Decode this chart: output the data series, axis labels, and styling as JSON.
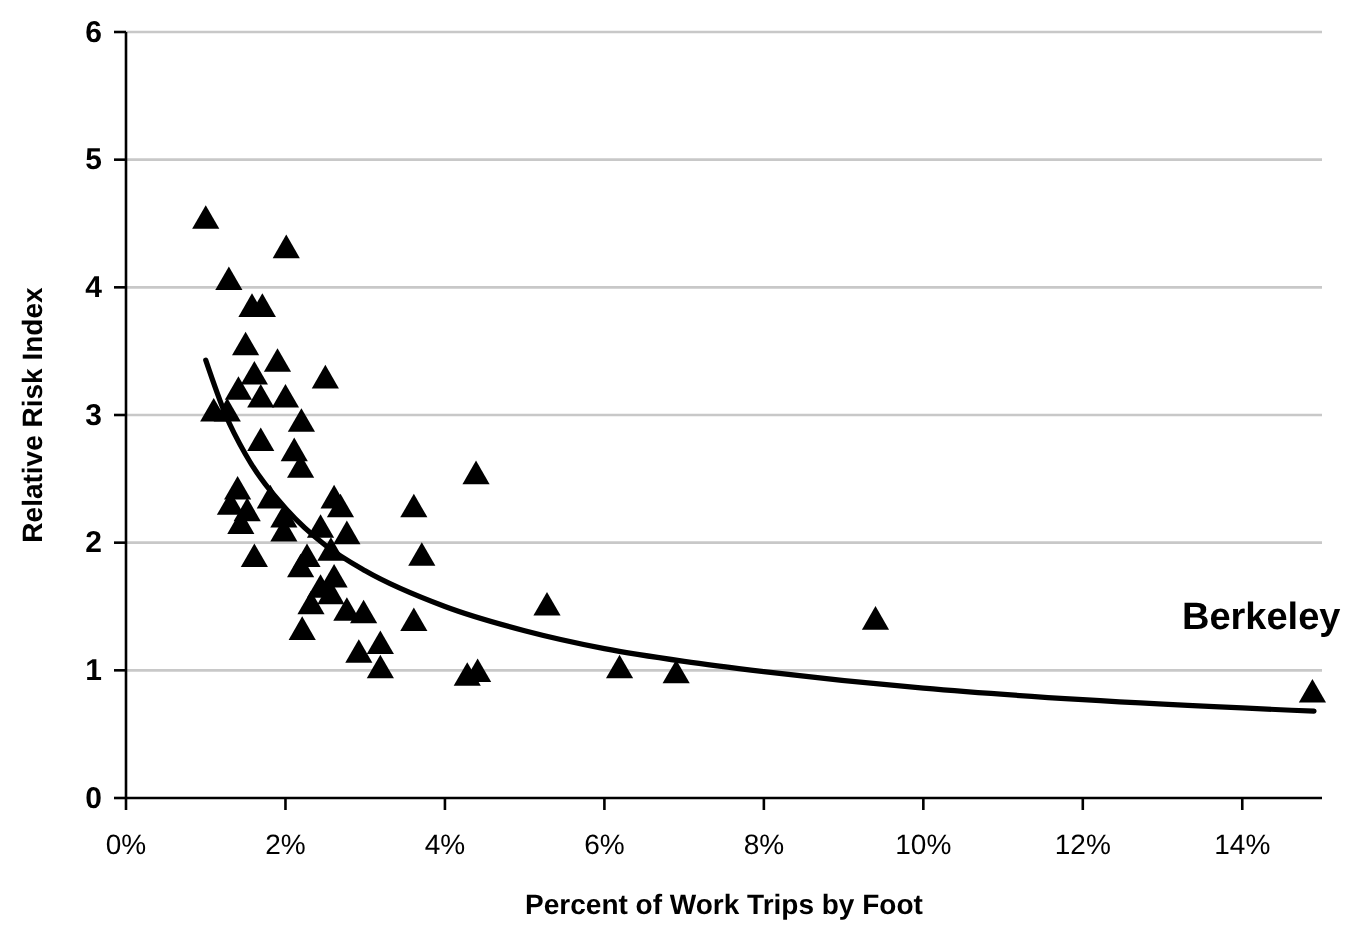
{
  "chart_data": {
    "type": "scatter",
    "xlabel": "Percent of Work Trips by Foot",
    "ylabel": "Relative Risk Index",
    "xlim": [
      0,
      15
    ],
    "xticks": [
      {
        "value": 0,
        "label": "0%"
      },
      {
        "value": 2,
        "label": "2%"
      },
      {
        "value": 4,
        "label": "4%"
      },
      {
        "value": 6,
        "label": "6%"
      },
      {
        "value": 8,
        "label": "8%"
      },
      {
        "value": 10,
        "label": "10%"
      },
      {
        "value": 12,
        "label": "12%"
      },
      {
        "value": 14,
        "label": "14%"
      }
    ],
    "ylim": [
      0,
      6
    ],
    "yticks": [
      0,
      1,
      2,
      3,
      4,
      5,
      6
    ],
    "grid": "y",
    "annotations": [
      {
        "text": "Berkeley",
        "x": 14.88,
        "y": 0.81
      }
    ],
    "series": [
      {
        "color": "#000000",
        "marker": "triangle",
        "x": [
          1.0,
          2.01,
          1.29,
          1.58,
          1.71,
          1.5,
          1.9,
          1.61,
          2.5,
          1.41,
          1.69,
          2.0,
          1.1,
          1.27,
          2.2,
          1.69,
          2.11,
          2.19,
          1.4,
          1.31,
          1.52,
          1.44,
          1.61,
          1.81,
          1.98,
          1.98,
          2.61,
          2.69,
          2.44,
          2.77,
          2.27,
          2.19,
          2.57,
          2.61,
          2.44,
          2.57,
          3.61,
          3.71,
          4.39,
          2.98,
          3.61,
          5.28,
          3.19,
          3.19,
          2.92,
          4.28,
          4.41,
          6.19,
          6.9,
          9.4,
          14.88,
          2.21,
          2.32,
          2.77
        ],
        "values": [
          4.52,
          4.29,
          4.04,
          3.83,
          3.83,
          3.53,
          3.4,
          3.3,
          3.27,
          3.18,
          3.12,
          3.12,
          3.01,
          3.01,
          2.93,
          2.78,
          2.7,
          2.57,
          2.4,
          2.28,
          2.23,
          2.13,
          1.87,
          2.33,
          2.18,
          2.07,
          2.33,
          2.26,
          2.1,
          2.05,
          1.87,
          1.79,
          1.92,
          1.71,
          1.63,
          1.58,
          2.26,
          1.88,
          2.52,
          1.43,
          1.37,
          1.49,
          1.19,
          1.0,
          1.12,
          0.94,
          0.97,
          1.0,
          0.96,
          1.38,
          0.81,
          1.3,
          1.5,
          1.45
        ]
      },
      {
        "type": "line",
        "color": "#000000",
        "marker": "none",
        "line_style": "solid",
        "x": [
          1.0,
          1.25,
          1.5,
          2,
          2.5,
          3,
          4,
          5,
          6,
          7,
          8,
          10,
          12,
          14.9
        ],
        "values": [
          3.43,
          3.0,
          2.69,
          2.27,
          1.98,
          1.78,
          1.5,
          1.31,
          1.17,
          1.07,
          0.99,
          0.86,
          0.77,
          0.68
        ]
      }
    ]
  }
}
